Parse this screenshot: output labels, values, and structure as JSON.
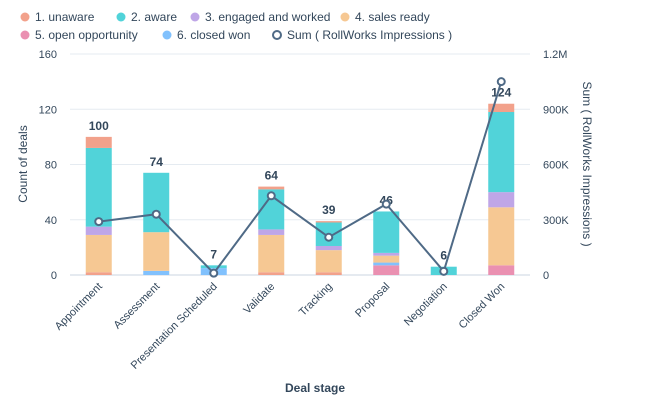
{
  "chart_data": {
    "type": "bar",
    "stacked": true,
    "xlabel": "Deal stage",
    "ylabel": "Count of deals",
    "y2label": "Sum ( RollWorks Impressions )",
    "ylim": [
      0,
      160
    ],
    "y2lim": [
      0,
      1200000
    ],
    "yticks": [
      "0",
      "40",
      "80",
      "120",
      "160"
    ],
    "y2ticks": [
      "0",
      "300K",
      "600K",
      "900K",
      "1.2M"
    ],
    "grid": true,
    "legend_position": "top",
    "categories": [
      "Appointment",
      "Assessment",
      "Presentation Scheduled",
      "Validate",
      "Tracking",
      "Proposal",
      "Negotiation",
      "Closed Won"
    ],
    "totals": [
      "100",
      "74",
      "7",
      "64",
      "39",
      "46",
      "6",
      "124"
    ],
    "series": [
      {
        "name": "5. open opportunity",
        "color": "#ea90b1",
        "values": [
          0,
          0,
          0,
          0,
          0,
          7,
          0,
          7
        ]
      },
      {
        "name": "1. unaware",
        "color": "#f2a18b",
        "values": [
          2,
          0,
          0,
          2,
          2,
          0,
          0,
          0
        ]
      },
      {
        "name": "6. closed won",
        "color": "#81c1fd",
        "values": [
          0,
          3,
          5,
          0,
          0,
          2,
          0,
          0
        ]
      },
      {
        "name": "4. sales ready",
        "color": "#f6c893",
        "values": [
          27,
          28,
          0,
          27,
          16,
          5,
          0,
          42
        ]
      },
      {
        "name": "3. engaged and worked",
        "color": "#bfa6e7",
        "values": [
          6,
          0,
          0,
          4,
          3,
          2,
          0,
          11
        ]
      },
      {
        "name": "2. aware",
        "color": "#51d3d9",
        "values": [
          57,
          43,
          2,
          29,
          17,
          30,
          6,
          58
        ]
      },
      {
        "name": "1. unaware",
        "color": "#f2a18b",
        "values": [
          8,
          0,
          0,
          2,
          1,
          0,
          0,
          6
        ]
      }
    ],
    "line_series": {
      "name": "Sum ( RollWorks Impressions )",
      "color": "#4f6a86",
      "values": [
        290000,
        330000,
        10000,
        430000,
        205000,
        385000,
        20000,
        1050000
      ]
    },
    "legend": [
      {
        "label": "1. unaware",
        "color": "#f2a18b",
        "marker": "dot"
      },
      {
        "label": "2. aware",
        "color": "#51d3d9",
        "marker": "dot"
      },
      {
        "label": "3. engaged and worked",
        "color": "#bfa6e7",
        "marker": "dot"
      },
      {
        "label": "4. sales ready",
        "color": "#f6c893",
        "marker": "dot"
      },
      {
        "label": "5. open opportunity",
        "color": "#ea90b1",
        "marker": "dot"
      },
      {
        "label": "6. closed won",
        "color": "#81c1fd",
        "marker": "dot"
      },
      {
        "label": "Sum ( RollWorks Impressions )",
        "color": "#4f6a86",
        "marker": "ring"
      }
    ]
  }
}
